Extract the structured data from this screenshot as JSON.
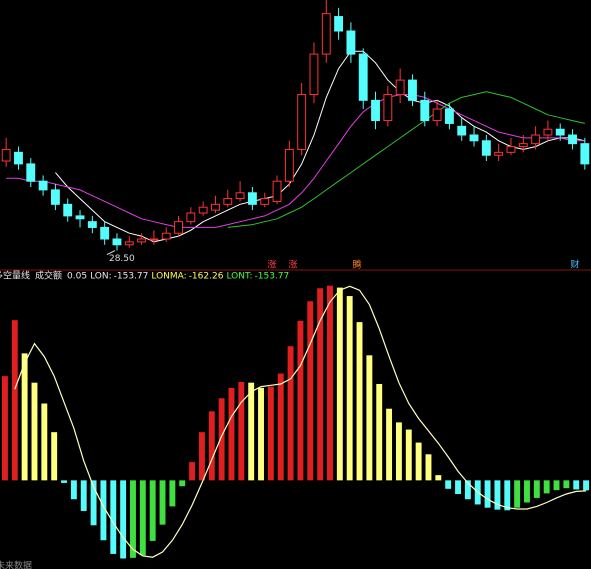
{
  "chart_data": [
    {
      "type": "candlestick",
      "ylim": [
        28,
        37
      ],
      "up_color": "#ff3232",
      "down_color": "#54fcfc",
      "open": [
        31.6,
        31.9,
        31.5,
        30.9,
        30.6,
        30.1,
        29.7,
        29.5,
        29.3,
        28.9,
        28.7,
        28.8,
        28.9,
        28.9,
        29.1,
        29.5,
        29.8,
        29.9,
        30.1,
        30.3,
        30.5,
        30.1,
        30.2,
        30.9,
        32.0,
        33.9,
        35.3,
        36.6,
        36.1,
        35.3,
        33.7,
        33.0,
        33.9,
        34.4,
        33.7,
        33.0,
        33.4,
        32.8,
        32.5,
        32.3,
        31.8,
        31.9,
        32.1,
        32.2,
        32.5,
        32.7,
        32.5,
        32.2
      ],
      "close": [
        32.0,
        31.5,
        30.9,
        30.6,
        30.1,
        29.7,
        29.6,
        29.3,
        28.9,
        28.7,
        28.8,
        28.9,
        28.9,
        29.1,
        29.5,
        29.8,
        30.0,
        30.1,
        30.3,
        30.5,
        30.1,
        30.3,
        30.9,
        32.0,
        33.9,
        35.3,
        36.7,
        36.1,
        35.3,
        33.7,
        33.0,
        33.9,
        34.4,
        33.7,
        33.0,
        33.4,
        32.9,
        32.5,
        32.3,
        31.8,
        31.9,
        32.1,
        32.2,
        32.5,
        32.7,
        32.5,
        32.2,
        31.5
      ],
      "high": [
        32.4,
        32.1,
        31.7,
        31.1,
        30.8,
        30.3,
        29.9,
        29.7,
        29.5,
        29.1,
        29.0,
        29.1,
        29.2,
        29.3,
        29.7,
        30.0,
        30.2,
        30.4,
        30.6,
        30.9,
        30.7,
        30.5,
        31.1,
        32.3,
        34.3,
        35.7,
        37.2,
        36.9,
        36.4,
        35.5,
        34.0,
        34.2,
        34.8,
        34.6,
        34.0,
        33.7,
        33.6,
        33.1,
        32.8,
        32.5,
        32.2,
        32.4,
        32.5,
        32.8,
        33.0,
        32.9,
        32.7,
        32.4
      ],
      "low": [
        31.4,
        31.3,
        30.7,
        30.4,
        29.9,
        29.5,
        29.3,
        29.1,
        28.7,
        28.5,
        28.6,
        28.7,
        28.7,
        28.8,
        29.0,
        29.4,
        29.7,
        29.8,
        30.0,
        30.2,
        29.9,
        30.0,
        30.1,
        30.7,
        31.8,
        33.6,
        35.0,
        35.8,
        35.0,
        33.4,
        32.7,
        32.8,
        33.6,
        33.5,
        32.8,
        32.8,
        32.7,
        32.3,
        32.1,
        31.6,
        31.6,
        31.8,
        31.9,
        32.0,
        32.3,
        32.3,
        32.0,
        31.3
      ],
      "lines": [
        {
          "color": "#ffffff",
          "values": [
            null,
            null,
            null,
            null,
            31.2,
            30.7,
            30.3,
            29.9,
            29.5,
            29.3,
            29.1,
            29.0,
            28.8,
            28.9,
            29.0,
            29.2,
            29.5,
            29.7,
            29.9,
            30.1,
            30.2,
            30.3,
            30.4,
            30.8,
            31.5,
            32.5,
            33.8,
            34.8,
            35.4,
            35.4,
            35.0,
            34.4,
            34.0,
            33.7,
            33.6,
            33.7,
            33.5,
            33.1,
            32.8,
            32.6,
            32.3,
            32.1,
            32.0,
            32.1,
            32.3,
            32.4,
            32.4,
            32.3
          ]
        },
        {
          "color": "#e040e0",
          "values": [
            31.0,
            31.0,
            30.9,
            30.9,
            30.8,
            30.7,
            30.6,
            30.4,
            30.2,
            30.0,
            29.8,
            29.6,
            29.5,
            29.4,
            29.3,
            29.3,
            29.3,
            29.3,
            29.4,
            29.5,
            29.6,
            29.7,
            29.9,
            30.1,
            30.5,
            31.0,
            31.6,
            32.2,
            32.8,
            33.3,
            33.6,
            33.8,
            33.9,
            33.9,
            33.8,
            33.6,
            33.4,
            33.2,
            33.0,
            32.8,
            32.6,
            32.5,
            32.4,
            32.4,
            32.4,
            32.4,
            32.3,
            32.3
          ]
        },
        {
          "color": "#30c030",
          "values": [
            null,
            null,
            null,
            null,
            null,
            null,
            null,
            null,
            null,
            null,
            null,
            null,
            null,
            null,
            null,
            null,
            null,
            null,
            29.3,
            29.35,
            29.4,
            29.5,
            29.6,
            29.8,
            30.0,
            30.3,
            30.6,
            30.9,
            31.2,
            31.5,
            31.8,
            32.1,
            32.4,
            32.7,
            33.0,
            33.3,
            33.6,
            33.8,
            33.9,
            34.0,
            33.9,
            33.8,
            33.6,
            33.4,
            33.2,
            33.1,
            33.0,
            32.9
          ]
        }
      ],
      "low_label": {
        "value": 28.5,
        "label": "28.50"
      },
      "events": [
        "涨",
        "腾",
        "财"
      ]
    },
    {
      "type": "bar",
      "indicator_name": "多空量线",
      "param_label": "成交额",
      "param": 0.05,
      "readout": [
        {
          "name": "LON:",
          "value": -153.77,
          "color": "#e8e8e8"
        },
        {
          "name": "LONMA:",
          "value": -162.26,
          "color": "#ffff50"
        },
        {
          "name": "LONT:",
          "value": -153.77,
          "color": "#40ff40"
        }
      ],
      "ylim": [
        -1300,
        3000
      ],
      "colors": {
        "up_pos": "#e02020",
        "down_pos": "#ffff80",
        "down_neg": "#54fcfc",
        "up_neg": "#40e040"
      },
      "series": [
        {
          "name": "LON",
          "values": [
            1600,
            2460,
            1950,
            1500,
            1180,
            740,
            -40,
            -290,
            -470,
            -690,
            -920,
            -1130,
            -1200,
            -1190,
            -1150,
            -930,
            -680,
            -400,
            -90,
            280,
            740,
            1060,
            1260,
            1420,
            1510,
            1500,
            1420,
            1440,
            1640,
            2060,
            2450,
            2750,
            2950,
            2990,
            2960,
            2830,
            2430,
            1920,
            1480,
            1100,
            890,
            780,
            580,
            400,
            80,
            -130,
            -210,
            -290,
            -370,
            -420,
            -450,
            -460,
            -420,
            -340,
            -270,
            -200,
            -150,
            -120,
            -140,
            -153.77
          ]
        },
        {
          "name": "LONMA",
          "color": "#ffffc0",
          "values": [
            null,
            1400,
            1800,
            2100,
            1900,
            1600,
            1200,
            800,
            300,
            -100,
            -400,
            -650,
            -880,
            -1060,
            -1160,
            -1180,
            -1100,
            -920,
            -680,
            -380,
            -40,
            320,
            680,
            980,
            1200,
            1360,
            1440,
            1460,
            1480,
            1560,
            1760,
            2100,
            2450,
            2740,
            2920,
            2980,
            2920,
            2700,
            2330,
            1900,
            1500,
            1180,
            950,
            760,
            570,
            360,
            140,
            -40,
            -180,
            -290,
            -370,
            -420,
            -440,
            -440,
            -400,
            -340,
            -270,
            -210,
            -170,
            -162.26
          ]
        }
      ],
      "footer_note": "未来数据"
    }
  ]
}
